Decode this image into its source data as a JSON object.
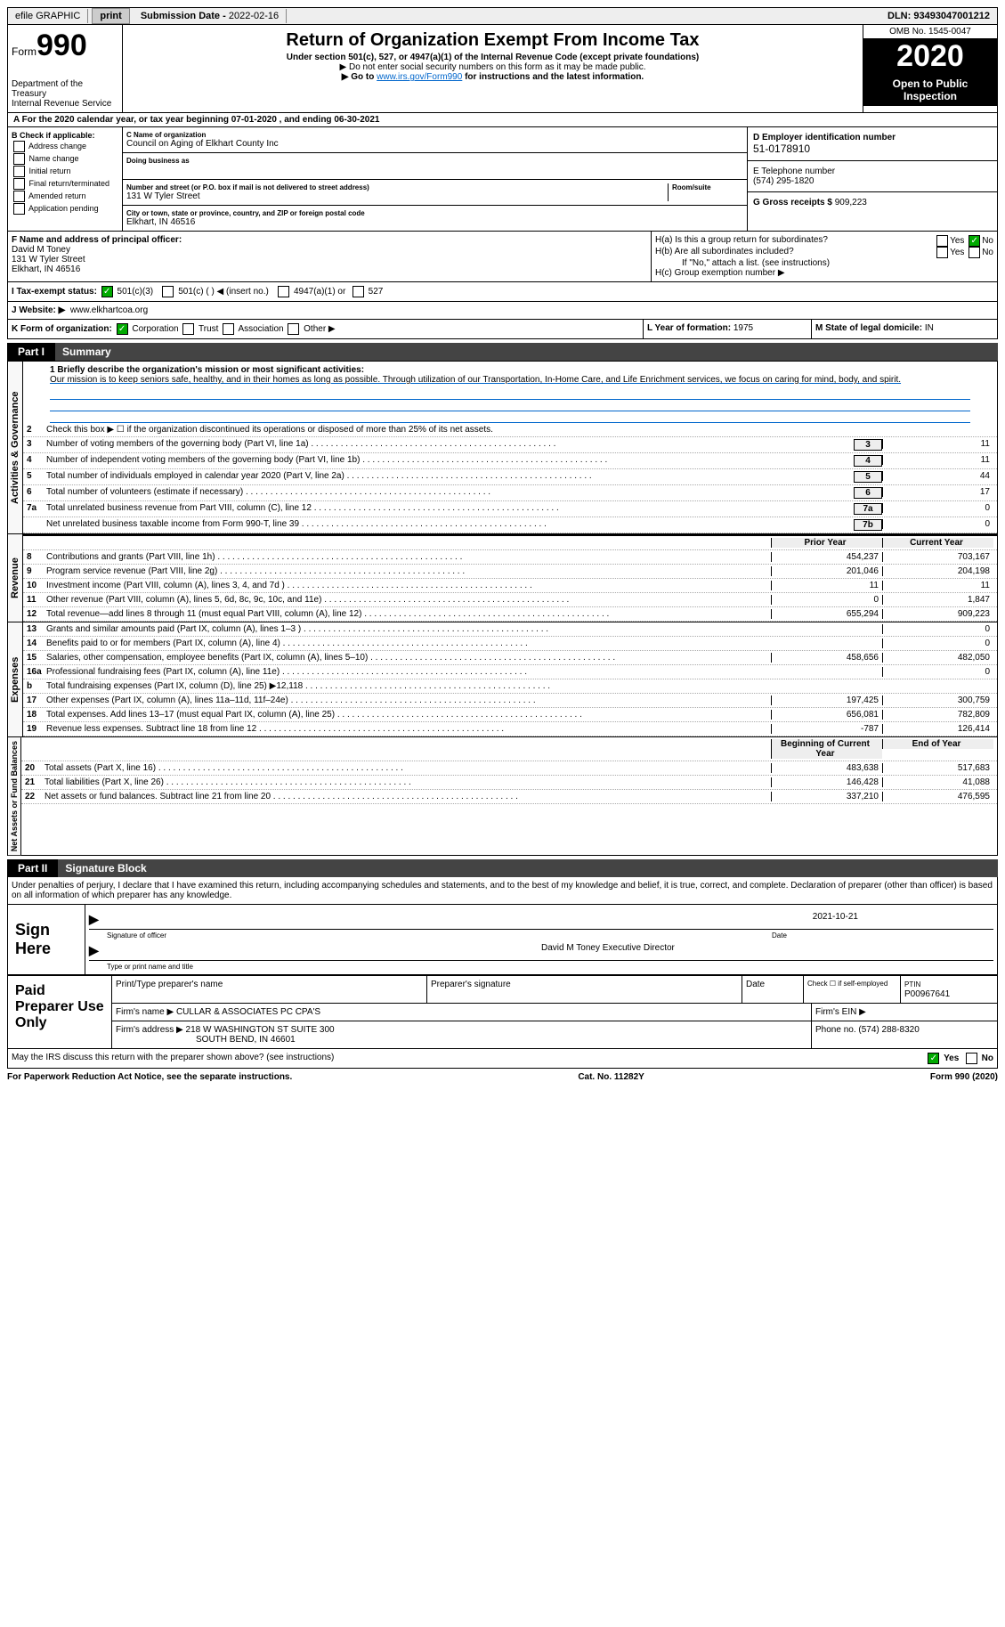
{
  "topbar": {
    "efile": "efile GRAPHIC",
    "print": "print",
    "sub_label": "Submission Date -",
    "sub_date": "2022-02-16",
    "dln_label": "DLN:",
    "dln": "93493047001212"
  },
  "header": {
    "form_word": "Form",
    "form_no": "990",
    "dept": "Department of the Treasury\nInternal Revenue Service",
    "title": "Return of Organization Exempt From Income Tax",
    "subtitle": "Under section 501(c), 527, or 4947(a)(1) of the Internal Revenue Code (except private foundations)",
    "note1": "▶ Do not enter social security numbers on this form as it may be made public.",
    "note2_pre": "▶ Go to ",
    "note2_link": "www.irs.gov/Form990",
    "note2_post": " for instructions and the latest information.",
    "omb": "OMB No. 1545-0047",
    "year": "2020",
    "opi": "Open to Public Inspection"
  },
  "period": "A For the 2020 calendar year, or tax year beginning 07-01-2020   , and ending 06-30-2021",
  "boxB": {
    "hdr": "B Check if applicable:",
    "opts": [
      "Address change",
      "Name change",
      "Initial return",
      "Final return/terminated",
      "Amended return",
      "Application pending"
    ]
  },
  "boxC": {
    "name_label": "C Name of organization",
    "name": "Council on Aging of Elkhart County Inc",
    "dba_label": "Doing business as",
    "dba": "",
    "addr_label": "Number and street (or P.O. box if mail is not delivered to street address)",
    "room_label": "Room/suite",
    "addr": "131 W Tyler Street",
    "city_label": "City or town, state or province, country, and ZIP or foreign postal code",
    "city": "Elkhart, IN  46516"
  },
  "boxD": {
    "label": "D Employer identification number",
    "ein": "51-0178910"
  },
  "boxE": {
    "label": "E Telephone number",
    "phone": "(574) 295-1820"
  },
  "boxG": {
    "label": "G Gross receipts $",
    "val": "909,223"
  },
  "boxF": {
    "label": "F Name and address of principal officer:",
    "name": "David M Toney",
    "addr1": "131 W Tyler Street",
    "addr2": "Elkhart, IN  46516"
  },
  "boxH": {
    "a": "H(a)  Is this a group return for subordinates?",
    "b": "H(b)  Are all subordinates included?",
    "b_note": "If \"No,\" attach a list. (see instructions)",
    "c": "H(c)  Group exemption number ▶",
    "yes": "Yes",
    "no": "No"
  },
  "boxI": {
    "label": "I   Tax-exempt status:",
    "o1": "501(c)(3)",
    "o2": "501(c) (  ) ◀ (insert no.)",
    "o3": "4947(a)(1) or",
    "o4": "527"
  },
  "boxJ": {
    "label": "J   Website: ▶",
    "val": "www.elkhartcoa.org"
  },
  "boxK": {
    "label": "K Form of organization:",
    "o1": "Corporation",
    "o2": "Trust",
    "o3": "Association",
    "o4": "Other ▶"
  },
  "boxL": {
    "label": "L Year of formation:",
    "val": "1975"
  },
  "boxM": {
    "label": "M State of legal domicile:",
    "val": "IN"
  },
  "part1": {
    "num": "Part I",
    "title": "Summary"
  },
  "mission": {
    "q": "1  Briefly describe the organization's mission or most significant activities:",
    "txt": "Our mission is to keep seniors safe, healthy, and in their homes as long as possible. Through utilization of our Transportation, In-Home Care, and Life Enrichment services, we focus on caring for mind, body, and spirit."
  },
  "line2": "Check this box ▶ ☐  if the organization discontinued its operations or disposed of more than 25% of its net assets.",
  "vtabs": {
    "gov": "Activities & Governance",
    "rev": "Revenue",
    "exp": "Expenses",
    "net": "Net Assets or Fund Balances"
  },
  "hdr_cols": {
    "prior": "Prior Year",
    "current": "Current Year",
    "begin": "Beginning of Current Year",
    "end": "End of Year"
  },
  "lines_gov": [
    {
      "n": "3",
      "t": "Number of voting members of the governing body (Part VI, line 1a)",
      "box": "3",
      "v": "11"
    },
    {
      "n": "4",
      "t": "Number of independent voting members of the governing body (Part VI, line 1b)",
      "box": "4",
      "v": "11"
    },
    {
      "n": "5",
      "t": "Total number of individuals employed in calendar year 2020 (Part V, line 2a)",
      "box": "5",
      "v": "44"
    },
    {
      "n": "6",
      "t": "Total number of volunteers (estimate if necessary)",
      "box": "6",
      "v": "17"
    },
    {
      "n": "7a",
      "t": "Total unrelated business revenue from Part VIII, column (C), line 12",
      "box": "7a",
      "v": "0"
    },
    {
      "n": "",
      "t": "Net unrelated business taxable income from Form 990-T, line 39",
      "box": "7b",
      "v": "0"
    }
  ],
  "lines_rev": [
    {
      "n": "8",
      "t": "Contributions and grants (Part VIII, line 1h)",
      "p": "454,237",
      "c": "703,167"
    },
    {
      "n": "9",
      "t": "Program service revenue (Part VIII, line 2g)",
      "p": "201,046",
      "c": "204,198"
    },
    {
      "n": "10",
      "t": "Investment income (Part VIII, column (A), lines 3, 4, and 7d )",
      "p": "11",
      "c": "11"
    },
    {
      "n": "11",
      "t": "Other revenue (Part VIII, column (A), lines 5, 6d, 8c, 9c, 10c, and 11e)",
      "p": "0",
      "c": "1,847"
    },
    {
      "n": "12",
      "t": "Total revenue—add lines 8 through 11 (must equal Part VIII, column (A), line 12)",
      "p": "655,294",
      "c": "909,223"
    }
  ],
  "lines_exp": [
    {
      "n": "13",
      "t": "Grants and similar amounts paid (Part IX, column (A), lines 1–3 )",
      "p": "",
      "c": "0"
    },
    {
      "n": "14",
      "t": "Benefits paid to or for members (Part IX, column (A), line 4)",
      "p": "",
      "c": "0"
    },
    {
      "n": "15",
      "t": "Salaries, other compensation, employee benefits (Part IX, column (A), lines 5–10)",
      "p": "458,656",
      "c": "482,050"
    },
    {
      "n": "16a",
      "t": "Professional fundraising fees (Part IX, column (A), line 11e)",
      "p": "",
      "c": "0"
    },
    {
      "n": "b",
      "t": "Total fundraising expenses (Part IX, column (D), line 25) ▶12,118",
      "p": "shade",
      "c": "shade"
    },
    {
      "n": "17",
      "t": "Other expenses (Part IX, column (A), lines 11a–11d, 11f–24e)",
      "p": "197,425",
      "c": "300,759"
    },
    {
      "n": "18",
      "t": "Total expenses. Add lines 13–17 (must equal Part IX, column (A), line 25)",
      "p": "656,081",
      "c": "782,809"
    },
    {
      "n": "19",
      "t": "Revenue less expenses. Subtract line 18 from line 12",
      "p": "-787",
      "c": "126,414"
    }
  ],
  "lines_net": [
    {
      "n": "20",
      "t": "Total assets (Part X, line 16)",
      "p": "483,638",
      "c": "517,683"
    },
    {
      "n": "21",
      "t": "Total liabilities (Part X, line 26)",
      "p": "146,428",
      "c": "41,088"
    },
    {
      "n": "22",
      "t": "Net assets or fund balances. Subtract line 21 from line 20",
      "p": "337,210",
      "c": "476,595"
    }
  ],
  "part2": {
    "num": "Part II",
    "title": "Signature Block"
  },
  "penalties": "Under penalties of perjury, I declare that I have examined this return, including accompanying schedules and statements, and to the best of my knowledge and belief, it is true, correct, and complete. Declaration of preparer (other than officer) is based on all information of which preparer has any knowledge.",
  "sign": {
    "here": "Sign Here",
    "sig_label": "Signature of officer",
    "date_label": "Date",
    "date": "2021-10-21",
    "name": "David M Toney  Executive Director",
    "name_label": "Type or print name and title"
  },
  "prep": {
    "left": "Paid Preparer Use Only",
    "h1": "Print/Type preparer's name",
    "h2": "Preparer's signature",
    "h3": "Date",
    "h4_pre": "Check ☐ if self-employed",
    "h5": "PTIN",
    "ptin": "P00967641",
    "firm_label": "Firm's name    ▶",
    "firm": "CULLAR & ASSOCIATES PC CPA'S",
    "ein_label": "Firm's EIN ▶",
    "addr_label": "Firm's address ▶",
    "addr1": "218 W WASHINGTON ST SUITE 300",
    "addr2": "SOUTH BEND, IN  46601",
    "phone_label": "Phone no.",
    "phone": "(574) 288-8320"
  },
  "may_discuss": "May the IRS discuss this return with the preparer shown above? (see instructions)",
  "footer": {
    "left": "For Paperwork Reduction Act Notice, see the separate instructions.",
    "mid": "Cat. No. 11282Y",
    "right": "Form 990 (2020)"
  }
}
